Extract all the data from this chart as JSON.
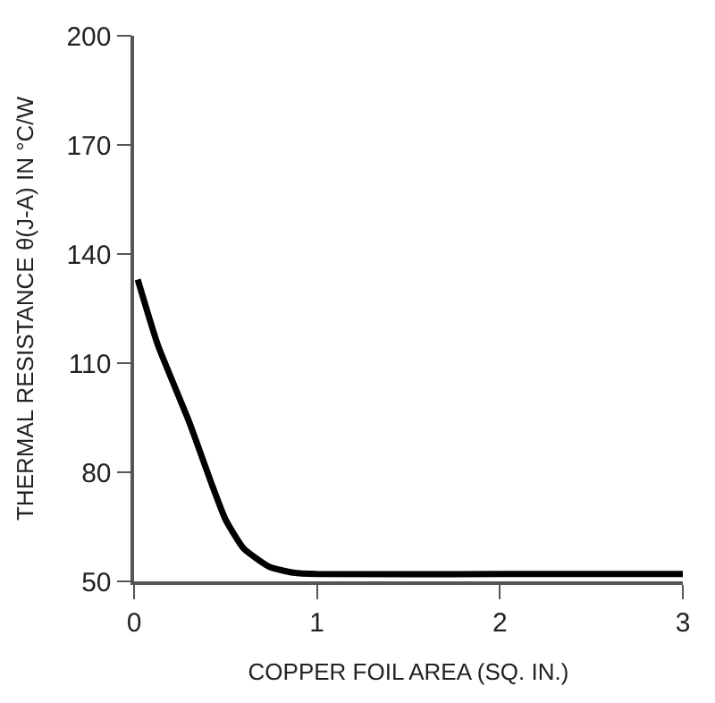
{
  "chart_data": {
    "type": "line",
    "xlabel": "COPPER FOIL AREA (SQ. IN.)",
    "ylabel": "THERMAL RESISTANCE θ(J-A) IN °C/W",
    "x": [
      0.02,
      0.13,
      0.3,
      0.43,
      0.5,
      0.6,
      0.74,
      0.87,
      1,
      2,
      3
    ],
    "series": [
      {
        "color": "#000000",
        "values": [
          133,
          115,
          94,
          76,
          67,
          59,
          54,
          52.4,
          52,
          52,
          52
        ]
      }
    ],
    "xlim": [
      0,
      3
    ],
    "xticks": [
      0,
      1,
      2,
      3
    ],
    "ylim": [
      50,
      200
    ],
    "yticks": [
      50,
      80,
      110,
      140,
      170,
      200
    ],
    "marker": "none",
    "line_style": "solid"
  }
}
